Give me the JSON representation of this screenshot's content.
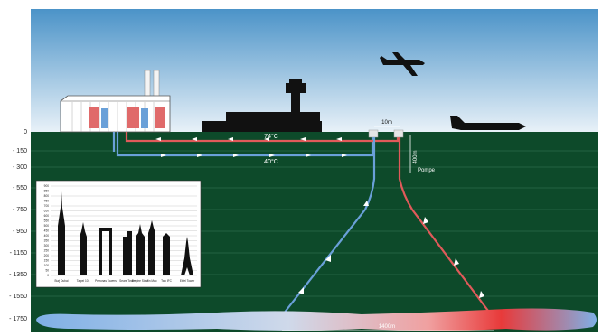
{
  "depth_axis": {
    "ticks": [
      "0",
      "- 150",
      "- 300",
      "- 550",
      "- 750",
      "- 950",
      "- 1150",
      "- 1350",
      "- 1550",
      "- 1750"
    ]
  },
  "surface": {
    "hot_line_temp": "74°C",
    "cold_line_temp": "40°C",
    "well_spacing": "10m",
    "pump_depth": "400m",
    "pump_label": "Pompe"
  },
  "reservoir": {
    "horizontal_distance": "1400m"
  },
  "inset": {
    "y_ticks": [
      "0",
      "50",
      "100",
      "150",
      "200",
      "250",
      "300",
      "350",
      "400",
      "450",
      "500",
      "550",
      "600",
      "650",
      "700",
      "750",
      "800",
      "850",
      "900"
    ],
    "buildings": [
      "Burj Dubai",
      "Taipei 101",
      "Petronas Towers",
      "Sears Tower",
      "Empire State",
      "Jin Mao",
      "Two IFC",
      "Eiffel Tower"
    ]
  },
  "colors": {
    "sky_top": "#4b93c8",
    "sky_bottom": "#e8f1f8",
    "ground": "#0d4a2a",
    "hot_pipe": "#e05a5a",
    "cold_pipe": "#6aa0d8",
    "reservoir_cold": "#7fb0e6",
    "reservoir_hot": "#e83a3a",
    "silhouette": "#111111"
  }
}
